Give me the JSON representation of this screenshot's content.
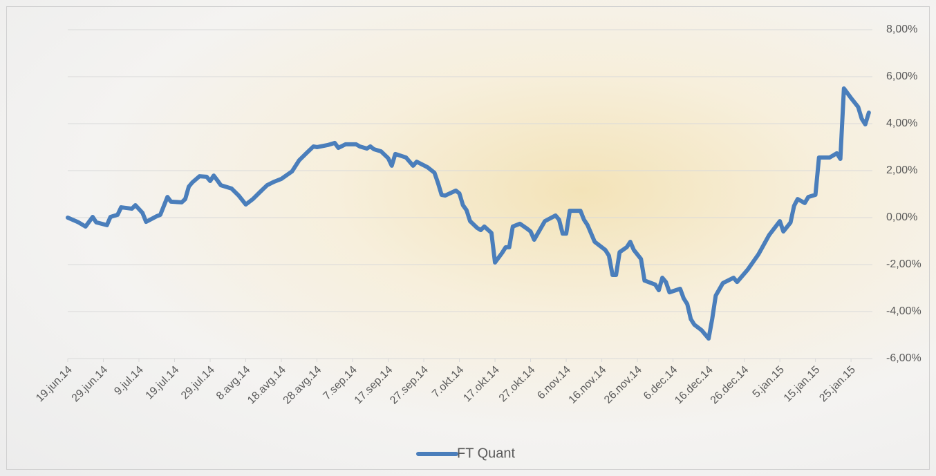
{
  "chart_data": {
    "type": "line",
    "x": [
      "2014-06-19",
      "2014-06-22",
      "2014-06-24",
      "2014-06-26",
      "2014-06-27",
      "2014-06-30",
      "2014-07-01",
      "2014-07-03",
      "2014-07-04",
      "2014-07-07",
      "2014-07-08",
      "2014-07-10",
      "2014-07-11",
      "2014-07-14",
      "2014-07-15",
      "2014-07-17",
      "2014-07-18",
      "2014-07-21",
      "2014-07-22",
      "2014-07-23",
      "2014-07-24",
      "2014-07-26",
      "2014-07-28",
      "2014-07-29",
      "2014-07-30",
      "2014-07-31",
      "2014-08-01",
      "2014-08-04",
      "2014-08-06",
      "2014-08-08",
      "2014-08-10",
      "2014-08-12",
      "2014-08-14",
      "2014-08-16",
      "2014-08-18",
      "2014-08-21",
      "2014-08-23",
      "2014-08-25",
      "2014-08-27",
      "2014-08-28",
      "2014-08-31",
      "2014-09-02",
      "2014-09-03",
      "2014-09-05",
      "2014-09-08",
      "2014-09-09",
      "2014-09-11",
      "2014-09-12",
      "2014-09-13",
      "2014-09-15",
      "2014-09-17",
      "2014-09-18",
      "2014-09-19",
      "2014-09-22",
      "2014-09-24",
      "2014-09-25",
      "2014-09-28",
      "2014-09-30",
      "2014-10-01",
      "2014-10-02",
      "2014-10-03",
      "2014-10-06",
      "2014-10-07",
      "2014-10-08",
      "2014-10-09",
      "2014-10-10",
      "2014-10-12",
      "2014-10-13",
      "2014-10-14",
      "2014-10-16",
      "2014-10-17",
      "2014-10-19",
      "2014-10-20",
      "2014-10-21",
      "2014-10-22",
      "2014-10-24",
      "2014-10-26",
      "2014-10-27",
      "2014-10-28",
      "2014-10-31",
      "2014-11-03",
      "2014-11-04",
      "2014-11-05",
      "2014-11-06",
      "2014-11-07",
      "2014-11-10",
      "2014-11-11",
      "2014-11-12",
      "2014-11-14",
      "2014-11-17",
      "2014-11-18",
      "2014-11-19",
      "2014-11-20",
      "2014-11-21",
      "2014-11-23",
      "2014-11-24",
      "2014-11-25",
      "2014-11-27",
      "2014-11-28",
      "2014-12-01",
      "2014-12-02",
      "2014-12-03",
      "2014-12-04",
      "2014-12-05",
      "2014-12-08",
      "2014-12-09",
      "2014-12-10",
      "2014-12-11",
      "2014-12-12",
      "2014-12-14",
      "2014-12-16",
      "2014-12-17",
      "2014-12-18",
      "2014-12-20",
      "2014-12-23",
      "2014-12-24",
      "2014-12-27",
      "2014-12-30",
      "2015-01-02",
      "2015-01-05",
      "2015-01-06",
      "2015-01-08",
      "2015-01-09",
      "2015-01-10",
      "2015-01-12",
      "2015-01-13",
      "2015-01-15",
      "2015-01-16",
      "2015-01-19",
      "2015-01-20",
      "2015-01-21",
      "2015-01-22",
      "2015-01-23",
      "2015-01-25",
      "2015-01-27",
      "2015-01-28",
      "2015-01-29",
      "2015-01-30"
    ],
    "series": [
      {
        "name": "FT Quant",
        "color": "#4a7ebb",
        "values": [
          0.0,
          -0.2,
          -0.38,
          0.03,
          -0.2,
          -0.32,
          0.03,
          0.12,
          0.44,
          0.38,
          0.53,
          0.2,
          -0.18,
          0.06,
          0.12,
          0.88,
          0.68,
          0.65,
          0.79,
          1.32,
          1.5,
          1.76,
          1.74,
          1.56,
          1.79,
          1.59,
          1.38,
          1.24,
          0.94,
          0.56,
          0.79,
          1.09,
          1.38,
          1.53,
          1.65,
          1.97,
          2.44,
          2.74,
          3.03,
          3.0,
          3.09,
          3.18,
          2.97,
          3.12,
          3.12,
          3.03,
          2.94,
          3.03,
          2.91,
          2.82,
          2.53,
          2.21,
          2.71,
          2.56,
          2.21,
          2.38,
          2.15,
          1.91,
          1.47,
          0.97,
          0.94,
          1.15,
          1.03,
          0.53,
          0.32,
          -0.15,
          -0.44,
          -0.53,
          -0.38,
          -0.65,
          -1.91,
          -1.5,
          -1.26,
          -1.26,
          -0.38,
          -0.26,
          -0.47,
          -0.59,
          -0.94,
          -0.15,
          0.09,
          -0.09,
          -0.68,
          -0.68,
          0.29,
          0.29,
          -0.09,
          -0.32,
          -1.03,
          -1.38,
          -1.62,
          -2.44,
          -2.44,
          -1.47,
          -1.26,
          -1.03,
          -1.38,
          -1.76,
          -2.68,
          -2.85,
          -3.09,
          -2.56,
          -2.74,
          -3.18,
          -3.03,
          -3.44,
          -3.68,
          -4.32,
          -4.56,
          -4.79,
          -5.15,
          -4.32,
          -3.32,
          -2.79,
          -2.56,
          -2.74,
          -2.21,
          -1.56,
          -0.74,
          -0.15,
          -0.59,
          -0.21,
          0.5,
          0.79,
          0.62,
          0.88,
          0.97,
          2.56,
          2.56,
          2.65,
          2.74,
          2.5,
          5.5,
          5.09,
          4.71,
          4.21,
          3.97,
          4.47
        ]
      }
    ],
    "xlim": [
      "2014-06-19",
      "2015-01-31"
    ],
    "xticks": [
      {
        "value": "2014-06-19",
        "label": "19.jun.14"
      },
      {
        "value": "2014-06-29",
        "label": "29.jun.14"
      },
      {
        "value": "2014-07-09",
        "label": "9.jul.14"
      },
      {
        "value": "2014-07-19",
        "label": "19.jul.14"
      },
      {
        "value": "2014-07-29",
        "label": "29.jul.14"
      },
      {
        "value": "2014-08-08",
        "label": "8.avg.14"
      },
      {
        "value": "2014-08-18",
        "label": "18.avg.14"
      },
      {
        "value": "2014-08-28",
        "label": "28.avg.14"
      },
      {
        "value": "2014-09-07",
        "label": "7.sep.14"
      },
      {
        "value": "2014-09-17",
        "label": "17.sep.14"
      },
      {
        "value": "2014-09-27",
        "label": "27.sep.14"
      },
      {
        "value": "2014-10-07",
        "label": "7.okt.14"
      },
      {
        "value": "2014-10-17",
        "label": "17.okt.14"
      },
      {
        "value": "2014-10-27",
        "label": "27.okt.14"
      },
      {
        "value": "2014-11-06",
        "label": "6.nov.14"
      },
      {
        "value": "2014-11-16",
        "label": "16.nov.14"
      },
      {
        "value": "2014-11-26",
        "label": "26.nov.14"
      },
      {
        "value": "2014-12-06",
        "label": "6.dec.14"
      },
      {
        "value": "2014-12-16",
        "label": "16.dec.14"
      },
      {
        "value": "2014-12-26",
        "label": "26.dec.14"
      },
      {
        "value": "2015-01-05",
        "label": "5.jan.15"
      },
      {
        "value": "2015-01-15",
        "label": "15.jan.15"
      },
      {
        "value": "2015-01-25",
        "label": "25.jan.15"
      }
    ],
    "ylim": [
      -6,
      8
    ],
    "yticks": [
      {
        "value": -6,
        "label": "-6,00%"
      },
      {
        "value": -4,
        "label": "-4,00%"
      },
      {
        "value": -2,
        "label": "-2,00%"
      },
      {
        "value": 0,
        "label": "0,00%"
      },
      {
        "value": 2,
        "label": "2,00%"
      },
      {
        "value": 4,
        "label": "4,00%"
      },
      {
        "value": 6,
        "label": "6,00%"
      },
      {
        "value": 8,
        "label": "8,00%"
      }
    ],
    "grid": true,
    "legend": "bottom"
  }
}
